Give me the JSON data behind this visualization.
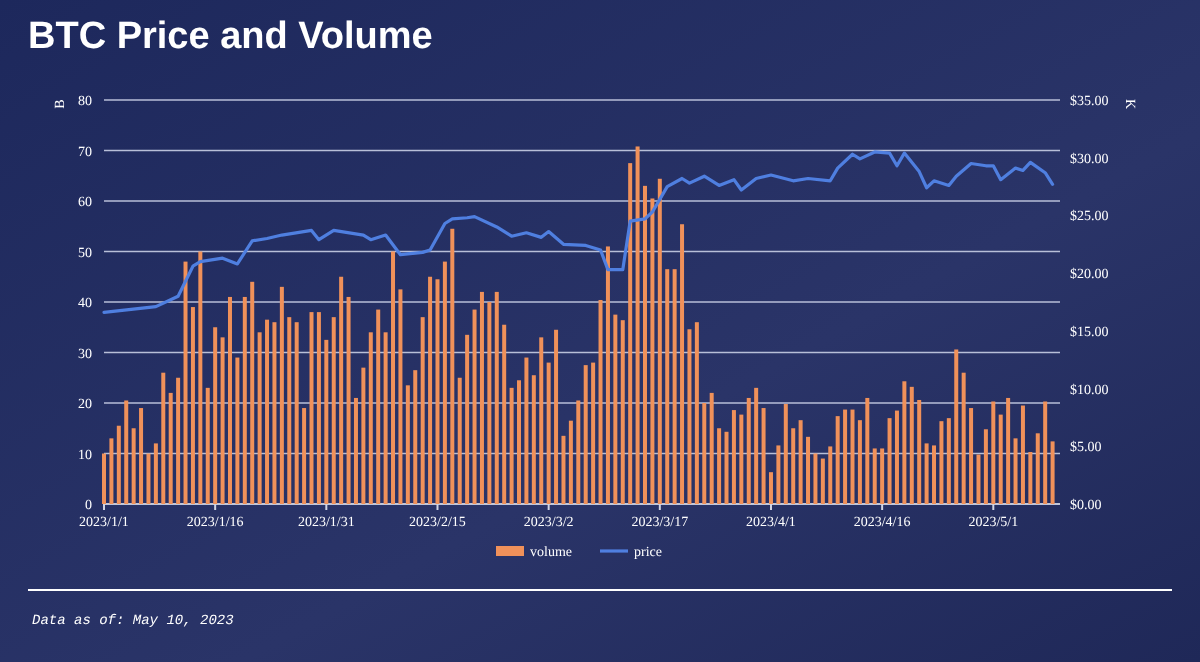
{
  "chart_data": {
    "type": "bar",
    "title": "BTC Price and Volume",
    "ylabel": "B",
    "y2label": "K",
    "annotations": [
      "Data as of: May 10, 2023"
    ],
    "x": [
      "2023-01-01",
      "2023-01-02",
      "2023-01-03",
      "2023-01-04",
      "2023-01-05",
      "2023-01-06",
      "2023-01-07",
      "2023-01-08",
      "2023-01-09",
      "2023-01-10",
      "2023-01-11",
      "2023-01-12",
      "2023-01-13",
      "2023-01-14",
      "2023-01-15",
      "2023-01-16",
      "2023-01-17",
      "2023-01-18",
      "2023-01-19",
      "2023-01-20",
      "2023-01-21",
      "2023-01-22",
      "2023-01-23",
      "2023-01-24",
      "2023-01-25",
      "2023-01-26",
      "2023-01-27",
      "2023-01-28",
      "2023-01-29",
      "2023-01-30",
      "2023-01-31",
      "2023-02-01",
      "2023-02-02",
      "2023-02-03",
      "2023-02-04",
      "2023-02-05",
      "2023-02-06",
      "2023-02-07",
      "2023-02-08",
      "2023-02-09",
      "2023-02-10",
      "2023-02-11",
      "2023-02-12",
      "2023-02-13",
      "2023-02-14",
      "2023-02-15",
      "2023-02-16",
      "2023-02-17",
      "2023-02-18",
      "2023-02-19",
      "2023-02-20",
      "2023-02-21",
      "2023-02-22",
      "2023-02-23",
      "2023-02-24",
      "2023-02-25",
      "2023-02-26",
      "2023-02-27",
      "2023-02-28",
      "2023-03-01",
      "2023-03-02",
      "2023-03-03",
      "2023-03-04",
      "2023-03-05",
      "2023-03-06",
      "2023-03-07",
      "2023-03-08",
      "2023-03-09",
      "2023-03-10",
      "2023-03-11",
      "2023-03-12",
      "2023-03-13",
      "2023-03-14",
      "2023-03-15",
      "2023-03-16",
      "2023-03-17",
      "2023-03-18",
      "2023-03-19",
      "2023-03-20",
      "2023-03-21",
      "2023-03-22",
      "2023-03-23",
      "2023-03-24",
      "2023-03-25",
      "2023-03-26",
      "2023-03-27",
      "2023-03-28",
      "2023-03-29",
      "2023-03-30",
      "2023-03-31",
      "2023-04-01",
      "2023-04-02",
      "2023-04-03",
      "2023-04-04",
      "2023-04-05",
      "2023-04-06",
      "2023-04-07",
      "2023-04-08",
      "2023-04-09",
      "2023-04-10",
      "2023-04-11",
      "2023-04-12",
      "2023-04-13",
      "2023-04-14",
      "2023-04-15",
      "2023-04-16",
      "2023-04-17",
      "2023-04-18",
      "2023-04-19",
      "2023-04-20",
      "2023-04-21",
      "2023-04-22",
      "2023-04-23",
      "2023-04-24",
      "2023-04-25",
      "2023-04-26",
      "2023-04-27",
      "2023-04-28",
      "2023-04-29",
      "2023-04-30",
      "2023-05-01",
      "2023-05-02",
      "2023-05-03",
      "2023-05-04",
      "2023-05-05",
      "2023-05-06",
      "2023-05-07",
      "2023-05-08",
      "2023-05-09"
    ],
    "series": [
      {
        "name": "volume",
        "color": "#f0915a",
        "values": [
          10,
          13,
          15.5,
          20.5,
          15,
          19,
          10,
          12,
          26,
          22,
          25,
          48,
          39,
          50,
          23,
          35,
          33,
          41,
          29,
          41,
          44,
          34,
          36.5,
          36,
          43,
          37,
          36,
          19,
          38,
          38,
          32.5,
          37,
          45,
          41,
          21,
          27,
          34,
          38.5,
          34,
          50,
          42.5,
          23.5,
          26.5,
          37,
          45,
          44.5,
          48,
          54.5,
          25,
          33.5,
          38.5,
          42,
          40,
          42,
          35.5,
          23,
          24.5,
          29,
          25.5,
          33,
          28,
          34.5,
          13.5,
          16.5,
          20.5,
          27.5,
          28,
          40.4,
          51,
          37.5,
          36.4,
          67.5,
          70.8,
          63,
          60.5,
          64.4,
          46.5,
          46.5,
          55.4,
          34.6,
          36,
          20,
          22,
          15,
          14.3,
          18.6,
          17.7,
          21,
          23,
          19,
          6.3,
          11.6,
          19.8,
          15,
          16.6,
          13.3,
          10,
          9,
          11.4,
          17.4,
          18.7,
          18.7,
          16.6,
          21,
          11,
          11,
          17,
          18.5,
          24.3,
          23.2,
          20.6,
          12,
          11.6,
          16.4,
          17,
          30.6,
          26,
          19,
          9.8,
          14.8,
          20.3,
          17.7,
          21,
          13,
          19.5,
          10.3,
          14,
          20.3,
          12.4
        ]
      },
      {
        "name": "price",
        "type": "line",
        "axis": "y2",
        "color": "#4f7fe0",
        "x": [
          "2023-01-01",
          "2023-01-08",
          "2023-01-11",
          "2023-01-13",
          "2023-01-14",
          "2023-01-17",
          "2023-01-19",
          "2023-01-21",
          "2023-01-23",
          "2023-01-25",
          "2023-01-29",
          "2023-01-30",
          "2023-02-01",
          "2023-02-05",
          "2023-02-06",
          "2023-02-08",
          "2023-02-10",
          "2023-02-13",
          "2023-02-14",
          "2023-02-16",
          "2023-02-17",
          "2023-02-19",
          "2023-02-20",
          "2023-02-23",
          "2023-02-25",
          "2023-02-27",
          "2023-03-01",
          "2023-03-02",
          "2023-03-04",
          "2023-03-07",
          "2023-03-09",
          "2023-03-10",
          "2023-03-12",
          "2023-03-13",
          "2023-03-15",
          "2023-03-16",
          "2023-03-18",
          "2023-03-20",
          "2023-03-21",
          "2023-03-23",
          "2023-03-25",
          "2023-03-27",
          "2023-03-28",
          "2023-03-30",
          "2023-04-01",
          "2023-04-04",
          "2023-04-06",
          "2023-04-09",
          "2023-04-10",
          "2023-04-12",
          "2023-04-13",
          "2023-04-15",
          "2023-04-17",
          "2023-04-18",
          "2023-04-19",
          "2023-04-21",
          "2023-04-22",
          "2023-04-23",
          "2023-04-25",
          "2023-04-26",
          "2023-04-28",
          "2023-04-30",
          "2023-05-01",
          "2023-05-02",
          "2023-05-04",
          "2023-05-05",
          "2023-05-06",
          "2023-05-08",
          "2023-05-09"
        ],
        "values": [
          16.6,
          17.1,
          18.0,
          20.6,
          21.0,
          21.3,
          20.8,
          22.8,
          23.0,
          23.3,
          23.7,
          22.9,
          23.7,
          23.3,
          22.9,
          23.3,
          21.6,
          21.8,
          22.0,
          24.3,
          24.7,
          24.8,
          24.9,
          24.0,
          23.2,
          23.5,
          23.1,
          23.6,
          22.5,
          22.4,
          22.0,
          20.3,
          20.3,
          24.5,
          24.7,
          25.3,
          27.5,
          28.2,
          27.8,
          28.4,
          27.6,
          28.1,
          27.2,
          28.2,
          28.5,
          28.0,
          28.2,
          28.0,
          29.1,
          30.3,
          29.9,
          30.5,
          30.4,
          29.3,
          30.4,
          28.8,
          27.4,
          28.0,
          27.6,
          28.4,
          29.5,
          29.3,
          29.3,
          28.1,
          29.1,
          28.9,
          29.6,
          28.7,
          27.7
        ]
      }
    ],
    "xlim": [
      "2023-01-01",
      "2023-05-10"
    ],
    "xticks": [
      {
        "value": "2023-01-01",
        "label": "2023/1/1"
      },
      {
        "value": "2023-01-16",
        "label": "2023/1/16"
      },
      {
        "value": "2023-01-31",
        "label": "2023/1/31"
      },
      {
        "value": "2023-02-15",
        "label": "2023/2/15"
      },
      {
        "value": "2023-03-02",
        "label": "2023/3/2"
      },
      {
        "value": "2023-03-17",
        "label": "2023/3/17"
      },
      {
        "value": "2023-04-01",
        "label": "2023/4/1"
      },
      {
        "value": "2023-04-16",
        "label": "2023/4/16"
      },
      {
        "value": "2023-05-01",
        "label": "2023/5/1"
      }
    ],
    "ylim": [
      0,
      80
    ],
    "yticks": [
      0,
      10,
      20,
      30,
      40,
      50,
      60,
      70,
      80
    ],
    "y2lim": [
      0,
      35
    ],
    "y2ticks": [
      {
        "value": 0,
        "label": "$0.00"
      },
      {
        "value": 5,
        "label": "$5.00"
      },
      {
        "value": 10,
        "label": "$10.00"
      },
      {
        "value": 15,
        "label": "$15.00"
      },
      {
        "value": 20,
        "label": "$20.00"
      },
      {
        "value": 25,
        "label": "$25.00"
      },
      {
        "value": 30,
        "label": "$30.00"
      },
      {
        "value": 35,
        "label": "$35.00"
      }
    ],
    "grid": "y",
    "legend": "bottom"
  }
}
